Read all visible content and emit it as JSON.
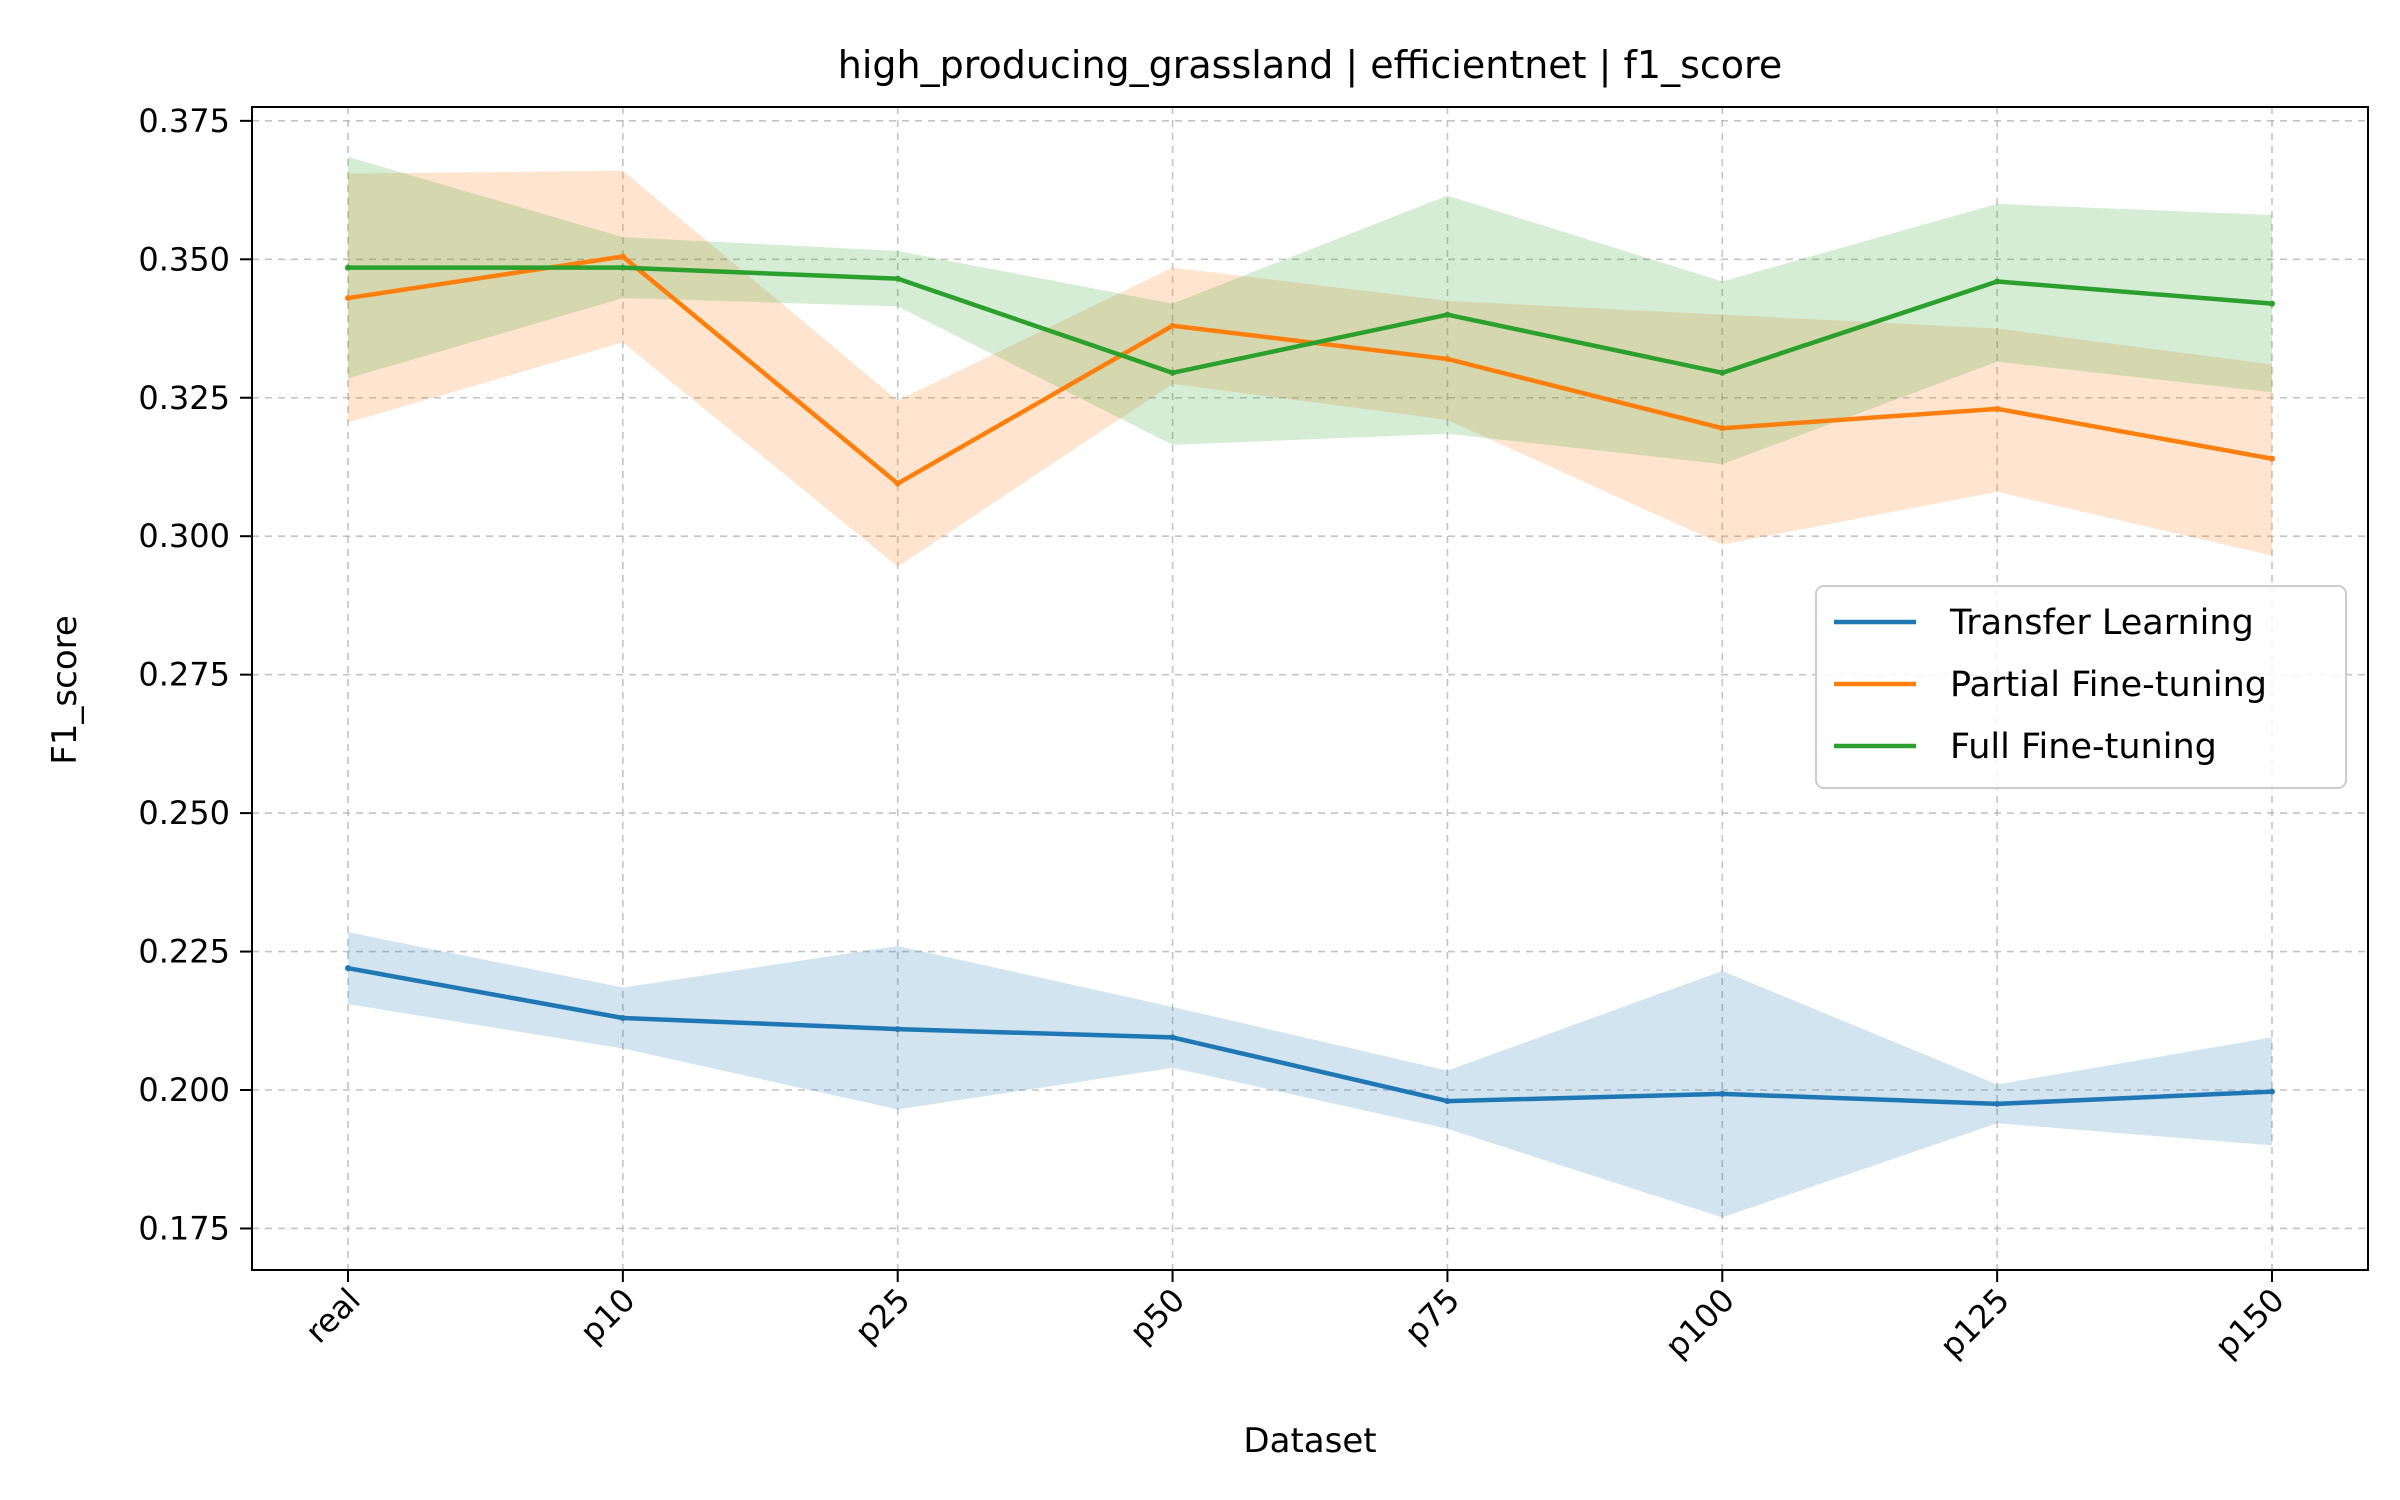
{
  "chart_data": {
    "type": "line",
    "title": "high_producing_grassland | efficientnet | f1_score",
    "xlabel": "Dataset",
    "ylabel": "F1_score",
    "categories": [
      "real",
      "p10",
      "p25",
      "p50",
      "p75",
      "p100",
      "p125",
      "p150"
    ],
    "ylim": [
      0.1675,
      0.3775
    ],
    "yticks": [
      0.175,
      0.2,
      0.225,
      0.25,
      0.275,
      0.3,
      0.325,
      0.35,
      0.375
    ],
    "ytick_labels": [
      "0.175",
      "0.200",
      "0.225",
      "0.250",
      "0.275",
      "0.300",
      "0.325",
      "0.350",
      "0.375"
    ],
    "grid": true,
    "legend_position": "center-right",
    "series": [
      {
        "name": "Transfer Learning",
        "color": "#1f77b4",
        "values": [
          0.222,
          0.213,
          0.211,
          0.2095,
          0.198,
          0.1993,
          0.1975,
          0.1997
        ],
        "upper": [
          0.2285,
          0.2185,
          0.226,
          0.215,
          0.2035,
          0.2215,
          0.201,
          0.2095
        ],
        "lower": [
          0.2155,
          0.2075,
          0.1965,
          0.204,
          0.193,
          0.177,
          0.194,
          0.19
        ]
      },
      {
        "name": "Partial Fine-tuning",
        "color": "#ff7f0e",
        "values": [
          0.343,
          0.3505,
          0.3095,
          0.338,
          0.332,
          0.3195,
          0.323,
          0.314
        ],
        "upper": [
          0.3655,
          0.366,
          0.3245,
          0.3485,
          0.3425,
          0.34,
          0.3375,
          0.331
        ],
        "lower": [
          0.3205,
          0.335,
          0.2945,
          0.3275,
          0.321,
          0.2985,
          0.308,
          0.2965
        ]
      },
      {
        "name": "Full Fine-tuning",
        "color": "#2ca02c",
        "values": [
          0.3485,
          0.3485,
          0.3465,
          0.3295,
          0.34,
          0.3295,
          0.346,
          0.342
        ],
        "upper": [
          0.3685,
          0.354,
          0.3515,
          0.342,
          0.3615,
          0.346,
          0.36,
          0.358
        ],
        "lower": [
          0.3285,
          0.343,
          0.3415,
          0.3165,
          0.3185,
          0.313,
          0.3315,
          0.326
        ]
      }
    ]
  }
}
